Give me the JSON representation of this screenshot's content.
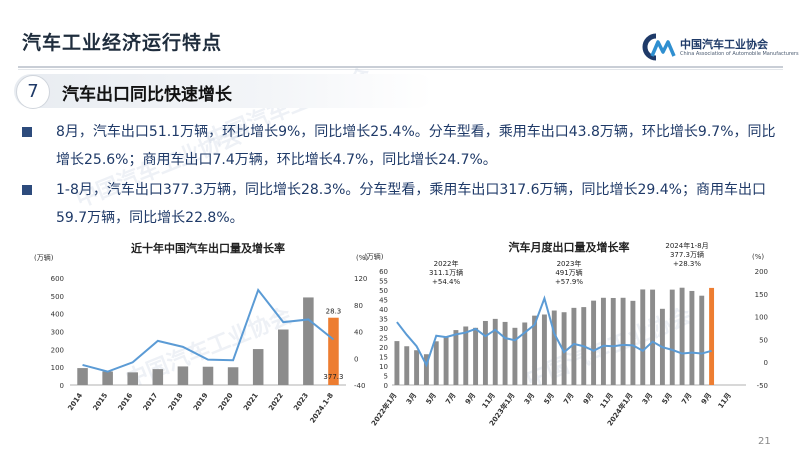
{
  "header": {
    "title": "汽车工业经济运行特点",
    "logo_cn": "中国汽车工业协会",
    "logo_en": "China Association of Automobile Manufacturers",
    "logo_mark": "CM"
  },
  "section": {
    "number": "7",
    "title": "汽车出口同比快速增长"
  },
  "bullets": [
    "8月，汽车出口51.1万辆，环比增长9%，同比增长25.4%。分车型看，乘用车出口43.8万辆，环比增长9.7%，同比增长25.6%；商用车出口7.4万辆，环比增长4.7%，同比增长24.7%。",
    "1-8月，汽车出口377.3万辆，同比增长28.3%。分车型看，乘用车出口317.6万辆，同比增长29.4%；商用车出口59.7万辆，同比增长22.8%。"
  ],
  "watermark": "中国汽车工业协会",
  "page_number": "21",
  "colors": {
    "bar_gray": "#8c8c8c",
    "bar_highlight": "#ed7d31",
    "line_blue": "#5b9bd5",
    "title_blue": "#1f3a68"
  },
  "chart_data": [
    {
      "type": "bar",
      "title": "近十年中国汽车出口量及增长率",
      "left_unit": "(万辆)",
      "right_unit": "(%)",
      "categories": [
        "2014",
        "2015",
        "2016",
        "2017",
        "2018",
        "2019",
        "2020",
        "2021",
        "2022",
        "2023",
        "2024.1-8"
      ],
      "series": [
        {
          "kind": "bar",
          "axis": "left",
          "values": [
            94.8,
            75.6,
            70.8,
            89.1,
            104.1,
            102.4,
            99.5,
            201.5,
            311.1,
            491,
            377.3
          ]
        },
        {
          "kind": "line",
          "axis": "right",
          "values": [
            -10,
            -20,
            -6,
            26,
            17,
            -2,
            -3,
            102,
            54,
            58,
            28
          ]
        }
      ],
      "highlight_index": 10,
      "data_labels": [
        "28.3",
        "377.3"
      ],
      "ylim_left": [
        0,
        600
      ],
      "yticks_left": [
        0,
        100,
        200,
        300,
        400,
        500,
        600
      ],
      "ylim_right": [
        -40,
        120
      ],
      "yticks_right": [
        -40,
        0,
        40,
        80,
        120
      ]
    },
    {
      "type": "bar",
      "title": "汽车月度出口量及增长率",
      "left_unit": "(万辆)",
      "right_unit": "(%)",
      "x_tick_labels": [
        "2022年1月",
        "3月",
        "5月",
        "7月",
        "9月",
        "11月",
        "2023年1月",
        "3月",
        "5月",
        "7月",
        "9月",
        "11月",
        "2024年1月",
        "3月",
        "5月",
        "7月",
        "9月",
        "11月"
      ],
      "months": 36,
      "series": [
        {
          "kind": "bar",
          "axis": "left",
          "values": [
            23.1,
            20.4,
            18.3,
            16.2,
            23.0,
            25.4,
            28.9,
            30.8,
            30.1,
            33.7,
            34.8,
            33.2,
            30.1,
            32.9,
            36.5,
            37.1,
            39.2,
            38.3,
            40.6,
            41.0,
            44.4,
            45.9,
            45.8,
            45.9,
            44.3,
            50.3,
            50.2,
            40.1,
            50.2,
            51.2,
            49.5,
            47.0,
            51.1
          ]
        },
        {
          "kind": "line",
          "axis": "right",
          "values": [
            88,
            60,
            35,
            -6,
            58,
            55,
            61,
            65,
            73,
            57,
            71,
            53,
            48,
            65,
            82,
            140,
            63,
            22,
            40,
            35,
            25,
            36,
            35,
            38,
            37,
            25,
            45,
            33,
            27,
            19,
            21,
            19,
            25
          ]
        },
        {
          "kind": "bar_highlight",
          "axis": "left",
          "index": 32,
          "value": 51.1
        }
      ],
      "annotations": [
        {
          "text": [
            "2022年",
            "311.1万辆",
            "+54.4%"
          ]
        },
        {
          "text": [
            "2023年",
            "491万辆",
            "+57.9%"
          ]
        },
        {
          "text": [
            "2024年1-8月",
            "377.3万辆",
            "+28.3%"
          ]
        }
      ],
      "ylim_left": [
        0,
        60
      ],
      "yticks_left": [
        0,
        5,
        10,
        15,
        20,
        25,
        30,
        35,
        40,
        45,
        50,
        55,
        60
      ],
      "ylim_right": [
        -50,
        200
      ],
      "yticks_right": [
        -50,
        0,
        50,
        100,
        150,
        200
      ]
    }
  ]
}
